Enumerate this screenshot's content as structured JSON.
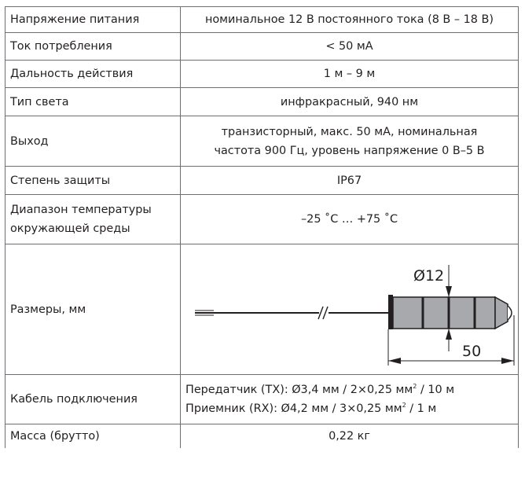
{
  "rows": [
    {
      "label": "Напряжение питания",
      "value": "номинальное 12 В постоянного тока (8 В – 18 В)"
    },
    {
      "label": "Ток потребления",
      "value": "< 50 мА"
    },
    {
      "label": "Дальность действия",
      "value": "1 м – 9 м"
    },
    {
      "label": "Тип света",
      "value": "инфракрасный, 940 нм"
    },
    {
      "label": "Выход",
      "value_line1": "транзисторный, макс. 50 мА, номинальная",
      "value_line2": "частота 900 Гц, уровень напряжение 0 В–5 В"
    },
    {
      "label": "Степень защиты",
      "value": "IP67"
    },
    {
      "label_line1": "Диапазон температуры",
      "label_line2": "окружающей среды",
      "value": "–25 ˚C … +75 ˚C"
    },
    {
      "label": "Размеры, мм",
      "diameter_label": "Ø12",
      "length_label": "50"
    },
    {
      "label": "Кабель подключения",
      "tx_main": "Передатчик (TX): Ø3,4 мм / 2×0,25 мм",
      "tx_sup": "2",
      "tx_tail": " / 10 м",
      "rx_main": "Приемник (RX): Ø4,2 мм / 3×0,25 мм",
      "rx_sup": "2",
      "rx_tail": " / 1 м"
    },
    {
      "label": "Масса (брутто)",
      "value": "0,22 кг"
    }
  ]
}
